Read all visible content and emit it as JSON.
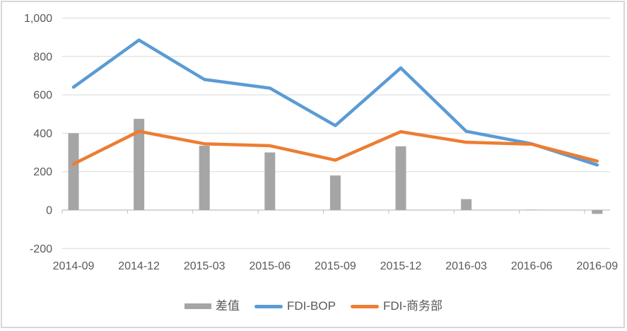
{
  "chart_data": {
    "type": "combo-bar-line",
    "categories": [
      "2014-09",
      "2014-12",
      "2015-03",
      "2015-06",
      "2015-09",
      "2015-12",
      "2016-03",
      "2016-06",
      "2016-09"
    ],
    "series": [
      {
        "name": "差值",
        "type": "bar",
        "color": "#A5A5A5",
        "values": [
          400,
          475,
          335,
          300,
          180,
          332,
          57,
          2,
          -20
        ]
      },
      {
        "name": "FDI-BOP",
        "type": "line",
        "color": "#5B9BD5",
        "values": [
          640,
          885,
          680,
          635,
          440,
          740,
          410,
          345,
          235
        ]
      },
      {
        "name": "FDI-商务部",
        "type": "line",
        "color": "#ED7D31",
        "values": [
          240,
          410,
          345,
          335,
          260,
          408,
          353,
          343,
          255
        ]
      }
    ],
    "title": "",
    "xlabel": "",
    "ylabel": "",
    "y_axis": {
      "min": -200,
      "max": 1000,
      "step": 200,
      "tick_labels": [
        "-200",
        "0",
        "200",
        "400",
        "600",
        "800",
        "1,000"
      ]
    },
    "grid": true,
    "legend_position": "bottom"
  },
  "colors": {
    "axis_text": "#595959",
    "gridline": "#D9D9D9",
    "axis_line": "#BFBFBF",
    "frame_border": "#D7D7D7",
    "background": "#FFFFFF"
  }
}
